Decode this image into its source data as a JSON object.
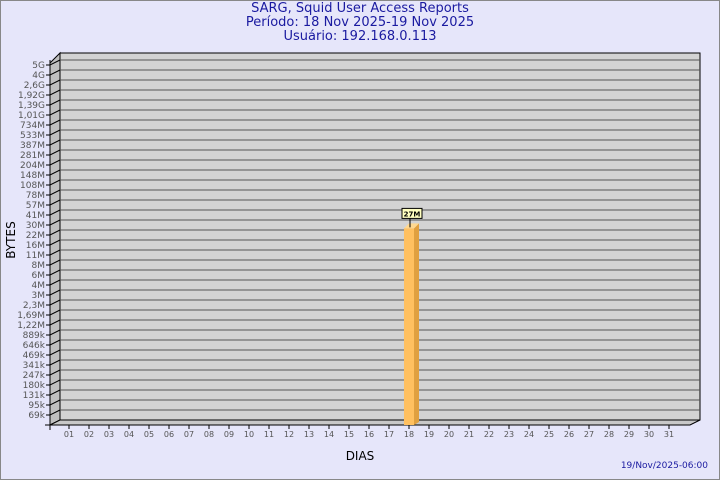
{
  "title": {
    "line1": "SARG, Squid User Access Reports",
    "line2": "Período: 18 Nov 2025-19 Nov 2025",
    "line3": "Usuário: 192.168.0.113"
  },
  "footer": "19/Nov/2025-06:00",
  "chart_data": {
    "type": "bar",
    "title": "SARG, Squid User Access Reports",
    "xlabel": "DIAS",
    "ylabel": "BYTES",
    "yscale": "log",
    "grid": true,
    "bar_color": "#ffc060",
    "plot_bg": "#d3d3d3",
    "categories": [
      "01",
      "02",
      "03",
      "04",
      "05",
      "06",
      "07",
      "08",
      "09",
      "10",
      "11",
      "12",
      "13",
      "14",
      "15",
      "16",
      "17",
      "18",
      "19",
      "20",
      "21",
      "22",
      "23",
      "24",
      "25",
      "26",
      "27",
      "28",
      "29",
      "30",
      "31"
    ],
    "y_ticks": [
      "5G",
      "4G",
      "2,6G",
      "1,92G",
      "1,39G",
      "1,01G",
      "734M",
      "533M",
      "387M",
      "281M",
      "204M",
      "148M",
      "108M",
      "78M",
      "57M",
      "41M",
      "30M",
      "22M",
      "16M",
      "11M",
      "8M",
      "6M",
      "4M",
      "3M",
      "2,3M",
      "1,69M",
      "1,22M",
      "889k",
      "646k",
      "469k",
      "341k",
      "247k",
      "180k",
      "131k",
      "95k",
      "69k"
    ],
    "bars": [
      {
        "category": "18",
        "value": 27000000,
        "label": "27M"
      }
    ]
  }
}
